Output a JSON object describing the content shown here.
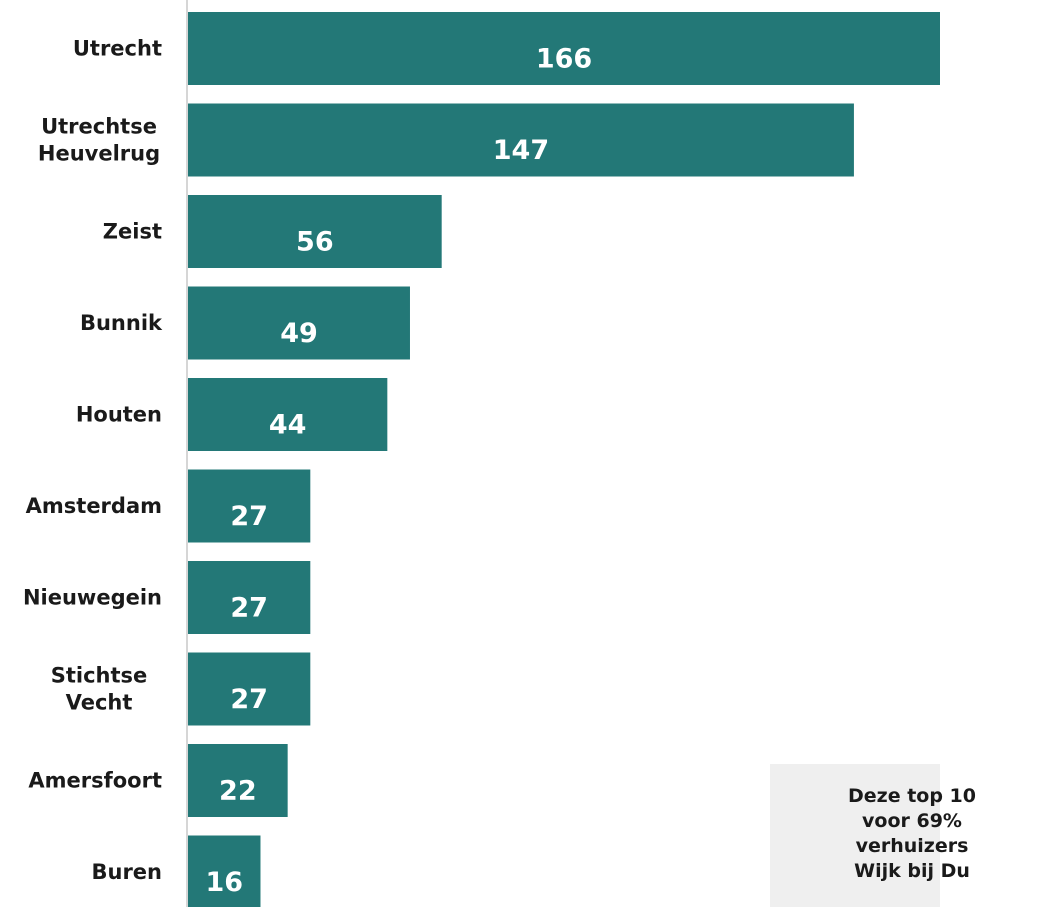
{
  "chart_data": {
    "type": "bar",
    "orientation": "horizontal",
    "title": "",
    "xlabel": "",
    "ylabel": "",
    "categories": [
      [
        "Utrecht"
      ],
      [
        "Utrechtse",
        "Heuvelrug"
      ],
      [
        "Zeist"
      ],
      [
        "Bunnik"
      ],
      [
        "Houten"
      ],
      [
        "Amsterdam"
      ],
      [
        "Nieuwegein"
      ],
      [
        "Stichtse",
        "Vecht"
      ],
      [
        "Amersfoort"
      ],
      [
        "Buren"
      ]
    ],
    "values": [
      166,
      147,
      56,
      49,
      44,
      27,
      27,
      27,
      22,
      16
    ],
    "data_labels": [
      "166",
      "147",
      "56",
      "49",
      "44",
      "27",
      "27",
      "27",
      "22",
      "16"
    ],
    "bar_color": "#237877",
    "axis_color": "#c8c8c8",
    "grid": false,
    "legend": "none"
  },
  "note": {
    "lines": [
      "Deze top 10",
      "voor 69%",
      "verhuizers",
      "Wijk bij Du"
    ],
    "background": "#efefef"
  }
}
